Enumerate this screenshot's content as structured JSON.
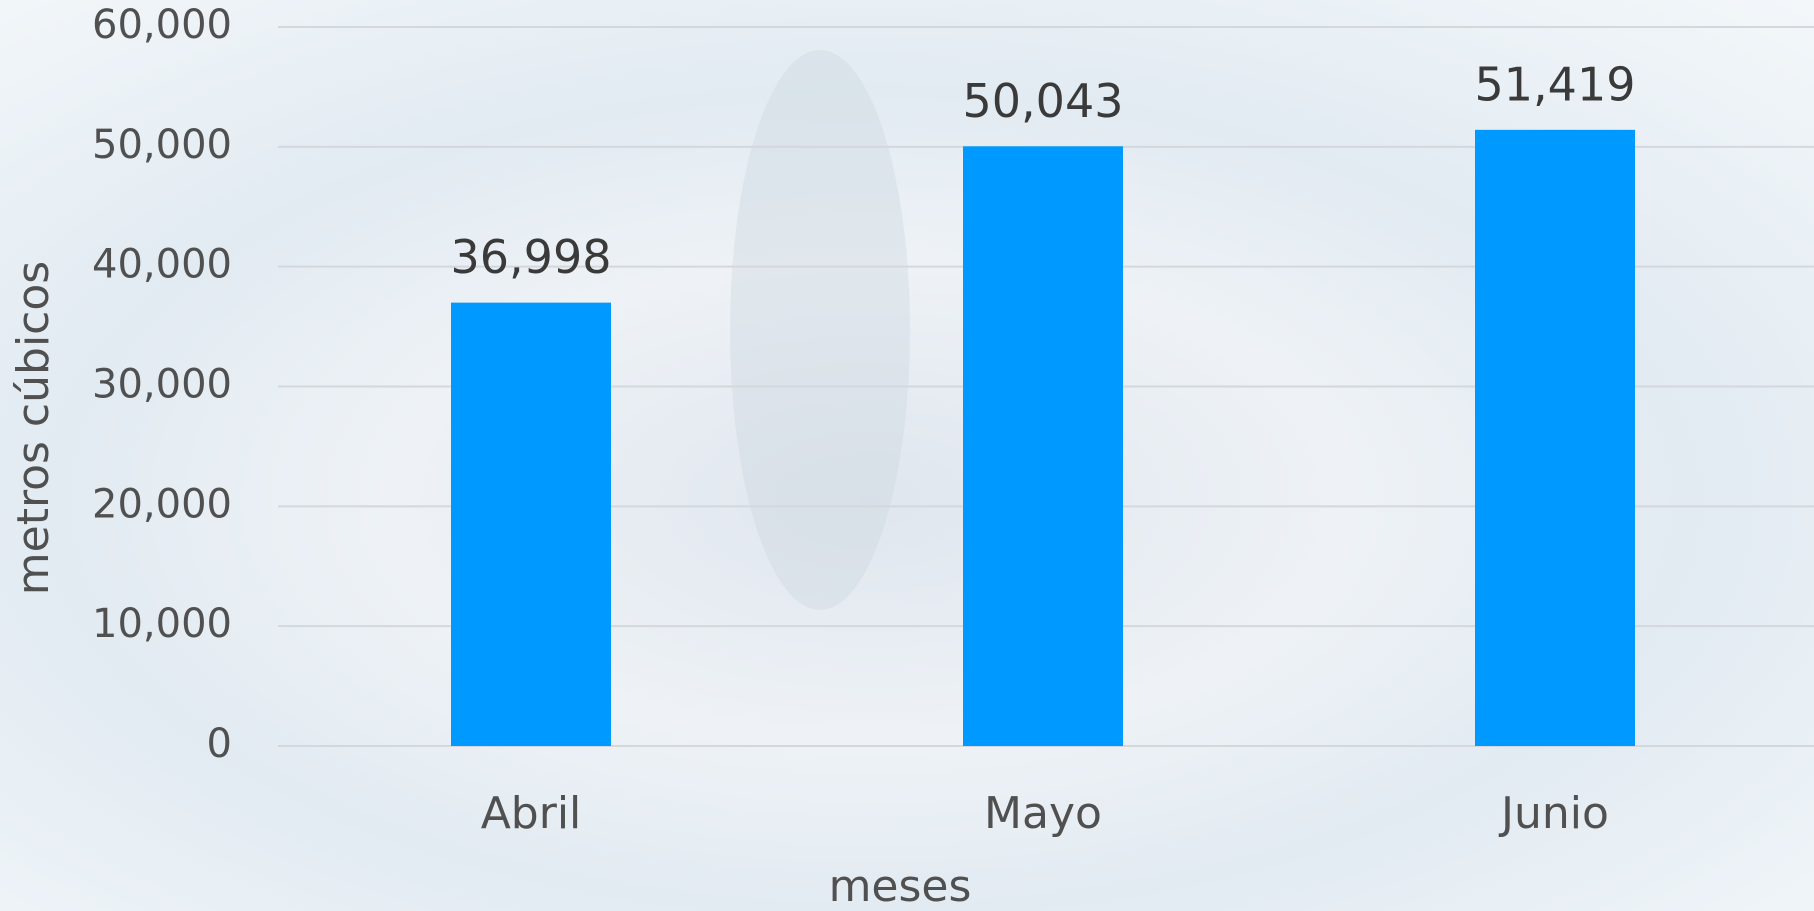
{
  "chart_data": {
    "type": "bar",
    "categories": [
      "Abril",
      "Mayo",
      "Junio"
    ],
    "values": [
      36998,
      50043,
      51419
    ],
    "value_labels": [
      "36,998",
      "50,043",
      "51,419"
    ],
    "color": "#0099ff",
    "x_label": "meses",
    "y_label": "metros cúbicos",
    "ylim": [
      0,
      60000
    ],
    "yticks": [
      0,
      {
        "value": 10000,
        "label": "10,000"
      },
      {
        "value": 20000,
        "label": "20,000"
      },
      {
        "value": 30000,
        "label": "30,000"
      },
      {
        "value": 40000,
        "label": "40,000"
      },
      {
        "value": 50000,
        "label": "50,000"
      },
      {
        "value": 60000,
        "label": "60,000"
      }
    ],
    "grid": true
  }
}
